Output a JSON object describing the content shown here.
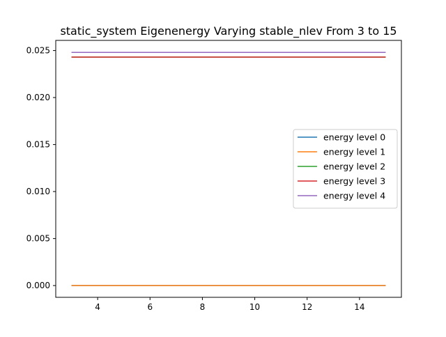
{
  "chart_data": {
    "type": "line",
    "title": "static_system Eigenenergy Varying stable_nlev From 3 to 15",
    "xlabel": "",
    "ylabel": "",
    "xlim": [
      2.4,
      15.6
    ],
    "ylim": [
      -0.00125,
      0.02608
    ],
    "x_ticks": [
      4,
      6,
      8,
      10,
      12,
      14
    ],
    "x_tick_labels": [
      "4",
      "6",
      "8",
      "10",
      "12",
      "14"
    ],
    "y_ticks": [
      0.0,
      0.005,
      0.01,
      0.015,
      0.02,
      0.025
    ],
    "y_tick_labels": [
      "0.000",
      "0.005",
      "0.010",
      "0.015",
      "0.020",
      "0.025"
    ],
    "grid": false,
    "legend_position": "center-right",
    "x": [
      3,
      4,
      5,
      6,
      7,
      8,
      9,
      10,
      11,
      12,
      13,
      14,
      15
    ],
    "series": [
      {
        "name": "energy level 0",
        "color": "#1f77b4",
        "values": [
          0,
          0,
          0,
          0,
          0,
          0,
          0,
          0,
          0,
          0,
          0,
          0,
          0
        ]
      },
      {
        "name": "energy level 1",
        "color": "#ff7f0e",
        "values": [
          0,
          0,
          0,
          0,
          0,
          0,
          0,
          0,
          0,
          0,
          0,
          0,
          0
        ]
      },
      {
        "name": "energy level 2",
        "color": "#2ca02c",
        "values": [
          0.0243,
          0.0243,
          0.0243,
          0.0243,
          0.0243,
          0.0243,
          0.0243,
          0.0243,
          0.0243,
          0.0243,
          0.0243,
          0.0243,
          0.0243
        ]
      },
      {
        "name": "energy level 3",
        "color": "#d62728",
        "values": [
          0.0243,
          0.0243,
          0.0243,
          0.0243,
          0.0243,
          0.0243,
          0.0243,
          0.0243,
          0.0243,
          0.0243,
          0.0243,
          0.0243,
          0.0243
        ]
      },
      {
        "name": "energy level 4",
        "color": "#9467bd",
        "values": [
          0.0248,
          0.0248,
          0.0248,
          0.0248,
          0.0248,
          0.0248,
          0.0248,
          0.0248,
          0.0248,
          0.0248,
          0.0248,
          0.0248,
          0.0248
        ]
      }
    ]
  }
}
